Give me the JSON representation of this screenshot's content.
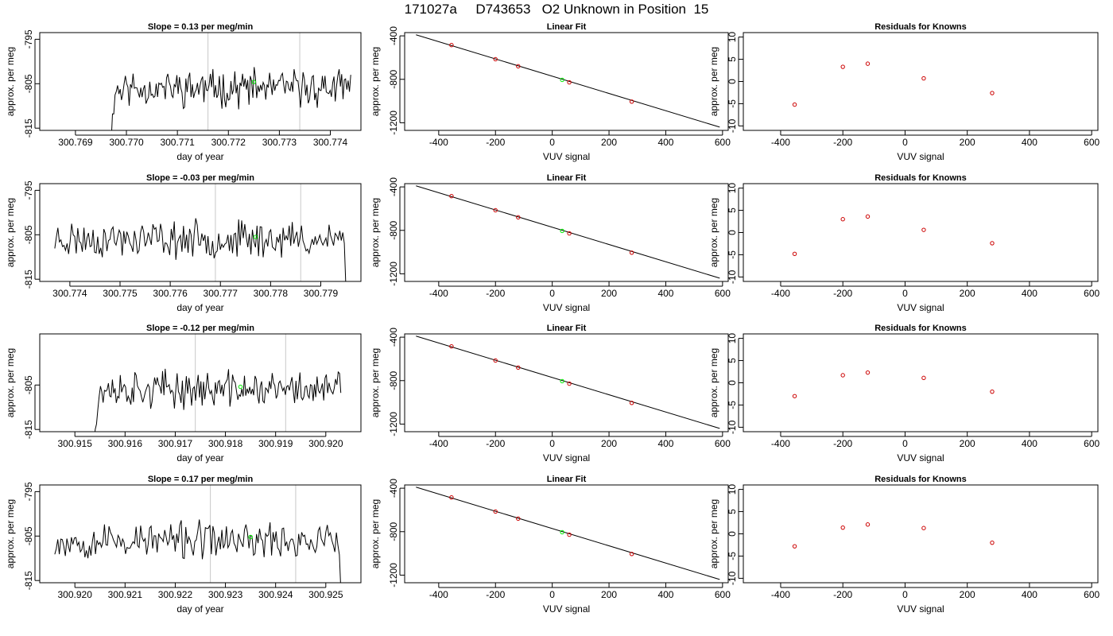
{
  "page": {
    "title": "171027a     D743653   O2 Unknown in Position  15"
  },
  "colors": {
    "line": "#000000",
    "known_point": "#cc0000",
    "unknown_point": "#00ee00",
    "marker_line": "#c8c8c8",
    "background": "#ffffff"
  },
  "chart_data": [
    {
      "type": "line",
      "panel": "timeseries",
      "row": 1,
      "title": "Slope =  0.13  per meg/min",
      "xlabel": "day of year",
      "ylabel": "approx. per meg",
      "xlim": [
        300.7683,
        300.7746
      ],
      "ylim": [
        -815.5,
        -793.5
      ],
      "xticks": [
        "300.769",
        "300.770",
        "300.771",
        "300.772",
        "300.773",
        "300.774"
      ],
      "yticks": [
        "-795",
        "-805",
        "-815"
      ],
      "series_start": 300.7696,
      "series_end": 300.7744,
      "seed": 11,
      "segment_edges": [
        300.7716,
        300.7734
      ],
      "unknown_point": {
        "x": 300.7725,
        "y": -804.6
      }
    },
    {
      "type": "line",
      "panel": "fit",
      "row": 1,
      "title": "Linear Fit",
      "xlabel": "VUV signal",
      "ylabel": "approx. per meg",
      "xlim": [
        -520,
        620
      ],
      "ylim": [
        -1270,
        -370
      ],
      "xticks": [
        "-400",
        "-200",
        "0",
        "200",
        "400",
        "600"
      ],
      "yticks": [
        "-400",
        "-800",
        "-1200"
      ],
      "fit_line": {
        "x": [
          -480,
          590
        ],
        "y": [
          -390,
          -1240
        ]
      },
      "knowns": {
        "x": [
          -355,
          -200,
          -120,
          60,
          280
        ],
        "y": [
          -485,
          -615,
          -680,
          -828,
          -1005
        ]
      },
      "unknown": {
        "x": 35,
        "y": -805
      }
    },
    {
      "type": "scatter",
      "panel": "residuals",
      "row": 1,
      "title": "Residuals for Knowns",
      "xlabel": "VUV signal",
      "ylabel": "approx. per meg",
      "xlim": [
        -520,
        620
      ],
      "ylim": [
        -11,
        11
      ],
      "xticks": [
        "-400",
        "-200",
        "0",
        "200",
        "400",
        "600"
      ],
      "yticks": [
        "10",
        "5",
        "0",
        "-5",
        "-10"
      ],
      "x": [
        -355,
        -200,
        -120,
        60,
        280
      ],
      "y": [
        -5.2,
        3.3,
        4.0,
        0.7,
        -2.6
      ]
    },
    {
      "type": "line",
      "panel": "timeseries",
      "row": 2,
      "title": "Slope =  -0.03  per meg/min",
      "xlabel": "day of year",
      "ylabel": "approx. per meg",
      "xlim": [
        300.7734,
        300.7798
      ],
      "ylim": [
        -815.5,
        -793.5
      ],
      "xticks": [
        "300.774",
        "300.775",
        "300.776",
        "300.777",
        "300.778",
        "300.779"
      ],
      "yticks": [
        "-795",
        "-805",
        "-815"
      ],
      "series_start": 300.7737,
      "series_end": 300.7795,
      "seed": 23,
      "segment_edges": [
        300.7769,
        300.7786
      ],
      "unknown_point": {
        "x": 300.7777,
        "y": -805.5
      }
    },
    {
      "type": "line",
      "panel": "fit",
      "row": 2,
      "title": "Linear Fit",
      "xlabel": "VUV signal",
      "ylabel": "approx. per meg",
      "xlim": [
        -520,
        620
      ],
      "ylim": [
        -1270,
        -370
      ],
      "xticks": [
        "-400",
        "-200",
        "0",
        "200",
        "400",
        "600"
      ],
      "yticks": [
        "-400",
        "-800",
        "-1200"
      ],
      "fit_line": {
        "x": [
          -480,
          590
        ],
        "y": [
          -390,
          -1240
        ]
      },
      "knowns": {
        "x": [
          -355,
          -200,
          -120,
          60,
          280
        ],
        "y": [
          -485,
          -615,
          -680,
          -828,
          -1005
        ]
      },
      "unknown": {
        "x": 35,
        "y": -805
      }
    },
    {
      "type": "scatter",
      "panel": "residuals",
      "row": 2,
      "title": "Residuals for Knowns",
      "xlabel": "VUV signal",
      "ylabel": "approx. per meg",
      "xlim": [
        -520,
        620
      ],
      "ylim": [
        -11,
        11
      ],
      "xticks": [
        "-400",
        "-200",
        "0",
        "200",
        "400",
        "600"
      ],
      "yticks": [
        "10",
        "5",
        "0",
        "-5",
        "-10"
      ],
      "x": [
        -355,
        -200,
        -120,
        60,
        280
      ],
      "y": [
        -4.8,
        3.0,
        3.6,
        0.6,
        -2.4
      ]
    },
    {
      "type": "line",
      "panel": "timeseries",
      "row": 3,
      "title": "Slope =  -0.12  per meg/min",
      "xlabel": "day of year",
      "ylabel": "approx. per meg",
      "xlim": [
        300.9143,
        300.9207
      ],
      "ylim": [
        -815.5,
        -793.5
      ],
      "xticks": [
        "300.915",
        "300.916",
        "300.917",
        "300.918",
        "300.919",
        "300.920"
      ],
      "yticks": [
        "-805",
        "-815"
      ],
      "series_start": 300.9153,
      "series_end": 300.9203,
      "seed": 37,
      "segment_edges": [
        300.9174,
        300.9192
      ],
      "unknown_point": {
        "x": 300.9183,
        "y": -805.4
      }
    },
    {
      "type": "line",
      "panel": "fit",
      "row": 3,
      "title": "Linear Fit",
      "xlabel": "VUV signal",
      "ylabel": "approx. per meg",
      "xlim": [
        -520,
        620
      ],
      "ylim": [
        -1270,
        -370
      ],
      "xticks": [
        "-400",
        "-200",
        "0",
        "200",
        "400",
        "600"
      ],
      "yticks": [
        "-400",
        "-800",
        "-1200"
      ],
      "fit_line": {
        "x": [
          -480,
          590
        ],
        "y": [
          -390,
          -1240
        ]
      },
      "knowns": {
        "x": [
          -355,
          -200,
          -120,
          60,
          280
        ],
        "y": [
          -485,
          -615,
          -680,
          -828,
          -1005
        ]
      },
      "unknown": {
        "x": 35,
        "y": -805
      }
    },
    {
      "type": "scatter",
      "panel": "residuals",
      "row": 3,
      "title": "Residuals for Knowns",
      "xlabel": "VUV signal",
      "ylabel": "approx. per meg",
      "xlim": [
        -520,
        620
      ],
      "ylim": [
        -11,
        11
      ],
      "xticks": [
        "-400",
        "-200",
        "0",
        "200",
        "400",
        "600"
      ],
      "yticks": [
        "10",
        "5",
        "0",
        "-5",
        "-10"
      ],
      "x": [
        -355,
        -200,
        -120,
        60,
        280
      ],
      "y": [
        -3.0,
        1.7,
        2.3,
        1.1,
        -2.0
      ]
    },
    {
      "type": "line",
      "panel": "timeseries",
      "row": 4,
      "title": "Slope =  0.17  per meg/min",
      "xlabel": "day of year",
      "ylabel": "approx. per meg",
      "xlim": [
        300.9193,
        300.9257
      ],
      "ylim": [
        -815.5,
        -793.5
      ],
      "xticks": [
        "300.920",
        "300.921",
        "300.922",
        "300.923",
        "300.924",
        "300.925"
      ],
      "yticks": [
        "-795",
        "-805",
        "-815"
      ],
      "series_start": 300.9196,
      "series_end": 300.9253,
      "seed": 53,
      "segment_edges": [
        300.9227,
        300.9244
      ],
      "unknown_point": {
        "x": 300.9235,
        "y": -805.2
      }
    },
    {
      "type": "line",
      "panel": "fit",
      "row": 4,
      "title": "Linear Fit",
      "xlabel": "VUV signal",
      "ylabel": "approx. per meg",
      "xlim": [
        -520,
        620
      ],
      "ylim": [
        -1270,
        -370
      ],
      "xticks": [
        "-400",
        "-200",
        "0",
        "200",
        "400",
        "600"
      ],
      "yticks": [
        "-400",
        "-800",
        "-1200"
      ],
      "fit_line": {
        "x": [
          -480,
          590
        ],
        "y": [
          -390,
          -1240
        ]
      },
      "knowns": {
        "x": [
          -355,
          -200,
          -120,
          60,
          280
        ],
        "y": [
          -485,
          -615,
          -680,
          -828,
          -1005
        ]
      },
      "unknown": {
        "x": 35,
        "y": -805
      }
    },
    {
      "type": "scatter",
      "panel": "residuals",
      "row": 4,
      "title": "Residuals for Knowns",
      "xlabel": "VUV signal",
      "ylabel": "approx. per meg",
      "xlim": [
        -520,
        620
      ],
      "ylim": [
        -11,
        11
      ],
      "xticks": [
        "-400",
        "-200",
        "0",
        "200",
        "400",
        "600"
      ],
      "yticks": [
        "10",
        "5",
        "0",
        "-5",
        "-10"
      ],
      "x": [
        -355,
        -200,
        -120,
        60,
        280
      ],
      "y": [
        -2.8,
        1.4,
        2.1,
        1.3,
        -2.0
      ]
    }
  ]
}
